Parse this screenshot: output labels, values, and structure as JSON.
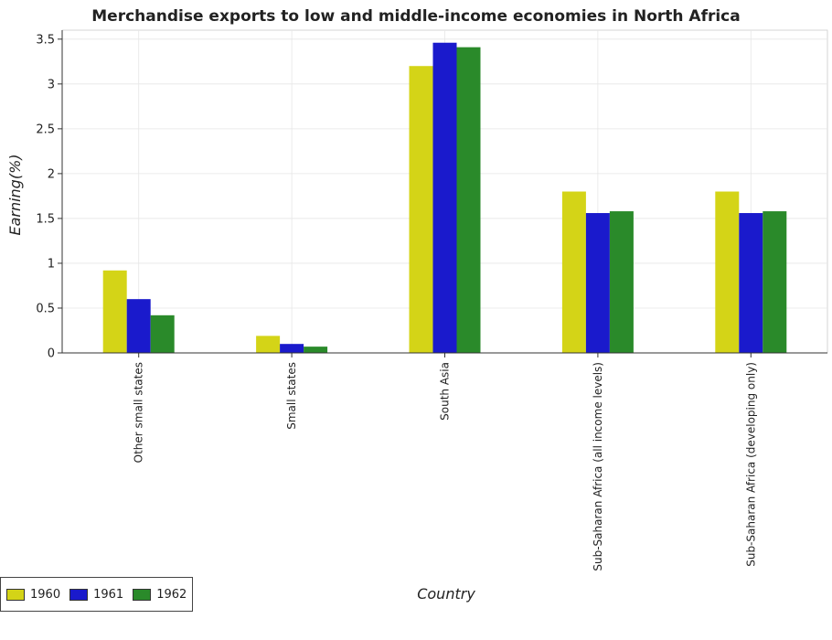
{
  "title": "Merchandise exports to low and middle-income economies in North Africa",
  "chart_data": {
    "type": "bar",
    "title": "Merchandise exports to low and middle-income economies in North Africa",
    "xlabel": "Country",
    "ylabel": "Earning(%)",
    "categories": [
      "Other small states",
      "Small states",
      "South Asia",
      "Sub-Saharan Africa (all income levels)",
      "Sub-Saharan Africa (developing only)"
    ],
    "series": [
      {
        "name": "1960",
        "color": "#d4d417",
        "values": [
          0.92,
          0.19,
          3.2,
          1.8,
          1.8
        ]
      },
      {
        "name": "1961",
        "color": "#1a1acc",
        "values": [
          0.6,
          0.1,
          3.46,
          1.56,
          1.56
        ]
      },
      {
        "name": "1962",
        "color": "#2a8a2a",
        "values": [
          0.42,
          0.07,
          3.41,
          1.58,
          1.58
        ]
      }
    ],
    "ylim": [
      0,
      3.6
    ],
    "yticks": [
      0,
      0.5,
      1,
      1.5,
      2,
      2.5,
      3,
      3.5
    ],
    "ytick_labels": [
      "0",
      "0.5",
      "1",
      "1.5",
      "2",
      "2.5",
      "3",
      "3.5"
    ],
    "grid": true,
    "legend_position": "bottom-left"
  }
}
